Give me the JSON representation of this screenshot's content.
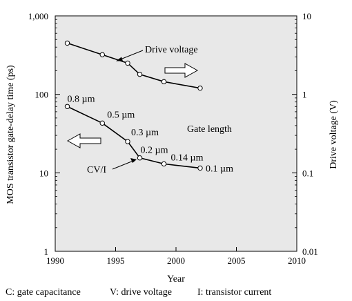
{
  "chart_data": {
    "type": "line",
    "xlabel": "Year",
    "ylabel_left": "MOS transistor gate-delay time (ps)",
    "ylabel_right": "Drive voltage (V)",
    "xlim": [
      1990,
      2010
    ],
    "xticks": [
      1990,
      1995,
      2000,
      2005,
      2010
    ],
    "xtick_labels": [
      "1990",
      "1995",
      "2000",
      "2005",
      "2010"
    ],
    "yscale": "log",
    "ylim_left": [
      1,
      1000
    ],
    "yticks_left": [
      1,
      10,
      100,
      1000
    ],
    "ytick_labels_left": [
      "1",
      "10",
      "100",
      "1,000"
    ],
    "ylim_right": [
      0.01,
      10
    ],
    "yticks_right": [
      0.01,
      0.1,
      1,
      10
    ],
    "ytick_labels_right": [
      "0.01",
      "0.1",
      "1",
      "10"
    ],
    "grid": false,
    "background": "#e8e8e8",
    "series": [
      {
        "name": "Drive voltage",
        "axis": "right",
        "x": [
          1991,
          1993.9,
          1996,
          1997,
          1999,
          2002
        ],
        "y": [
          4.5,
          3.2,
          2.5,
          1.8,
          1.45,
          1.2
        ]
      },
      {
        "name": "CV/I",
        "axis": "left",
        "x": [
          1991,
          1993.9,
          1996,
          1997,
          1999,
          2002
        ],
        "y": [
          70,
          43,
          25,
          15.5,
          13,
          11.5
        ],
        "point_labels": [
          "0.8 µm",
          "0.5 µm",
          "0.3 µm",
          "0.2 µm",
          "0.14 µm",
          "0.1 µm"
        ]
      }
    ],
    "annotations": {
      "drive_voltage": "Drive voltage",
      "gate_length": "Gate length",
      "cvi": "CV/I"
    },
    "footnote": {
      "c": "C: gate capacitance",
      "v": "V: drive voltage",
      "i": "I: transistor current"
    }
  }
}
